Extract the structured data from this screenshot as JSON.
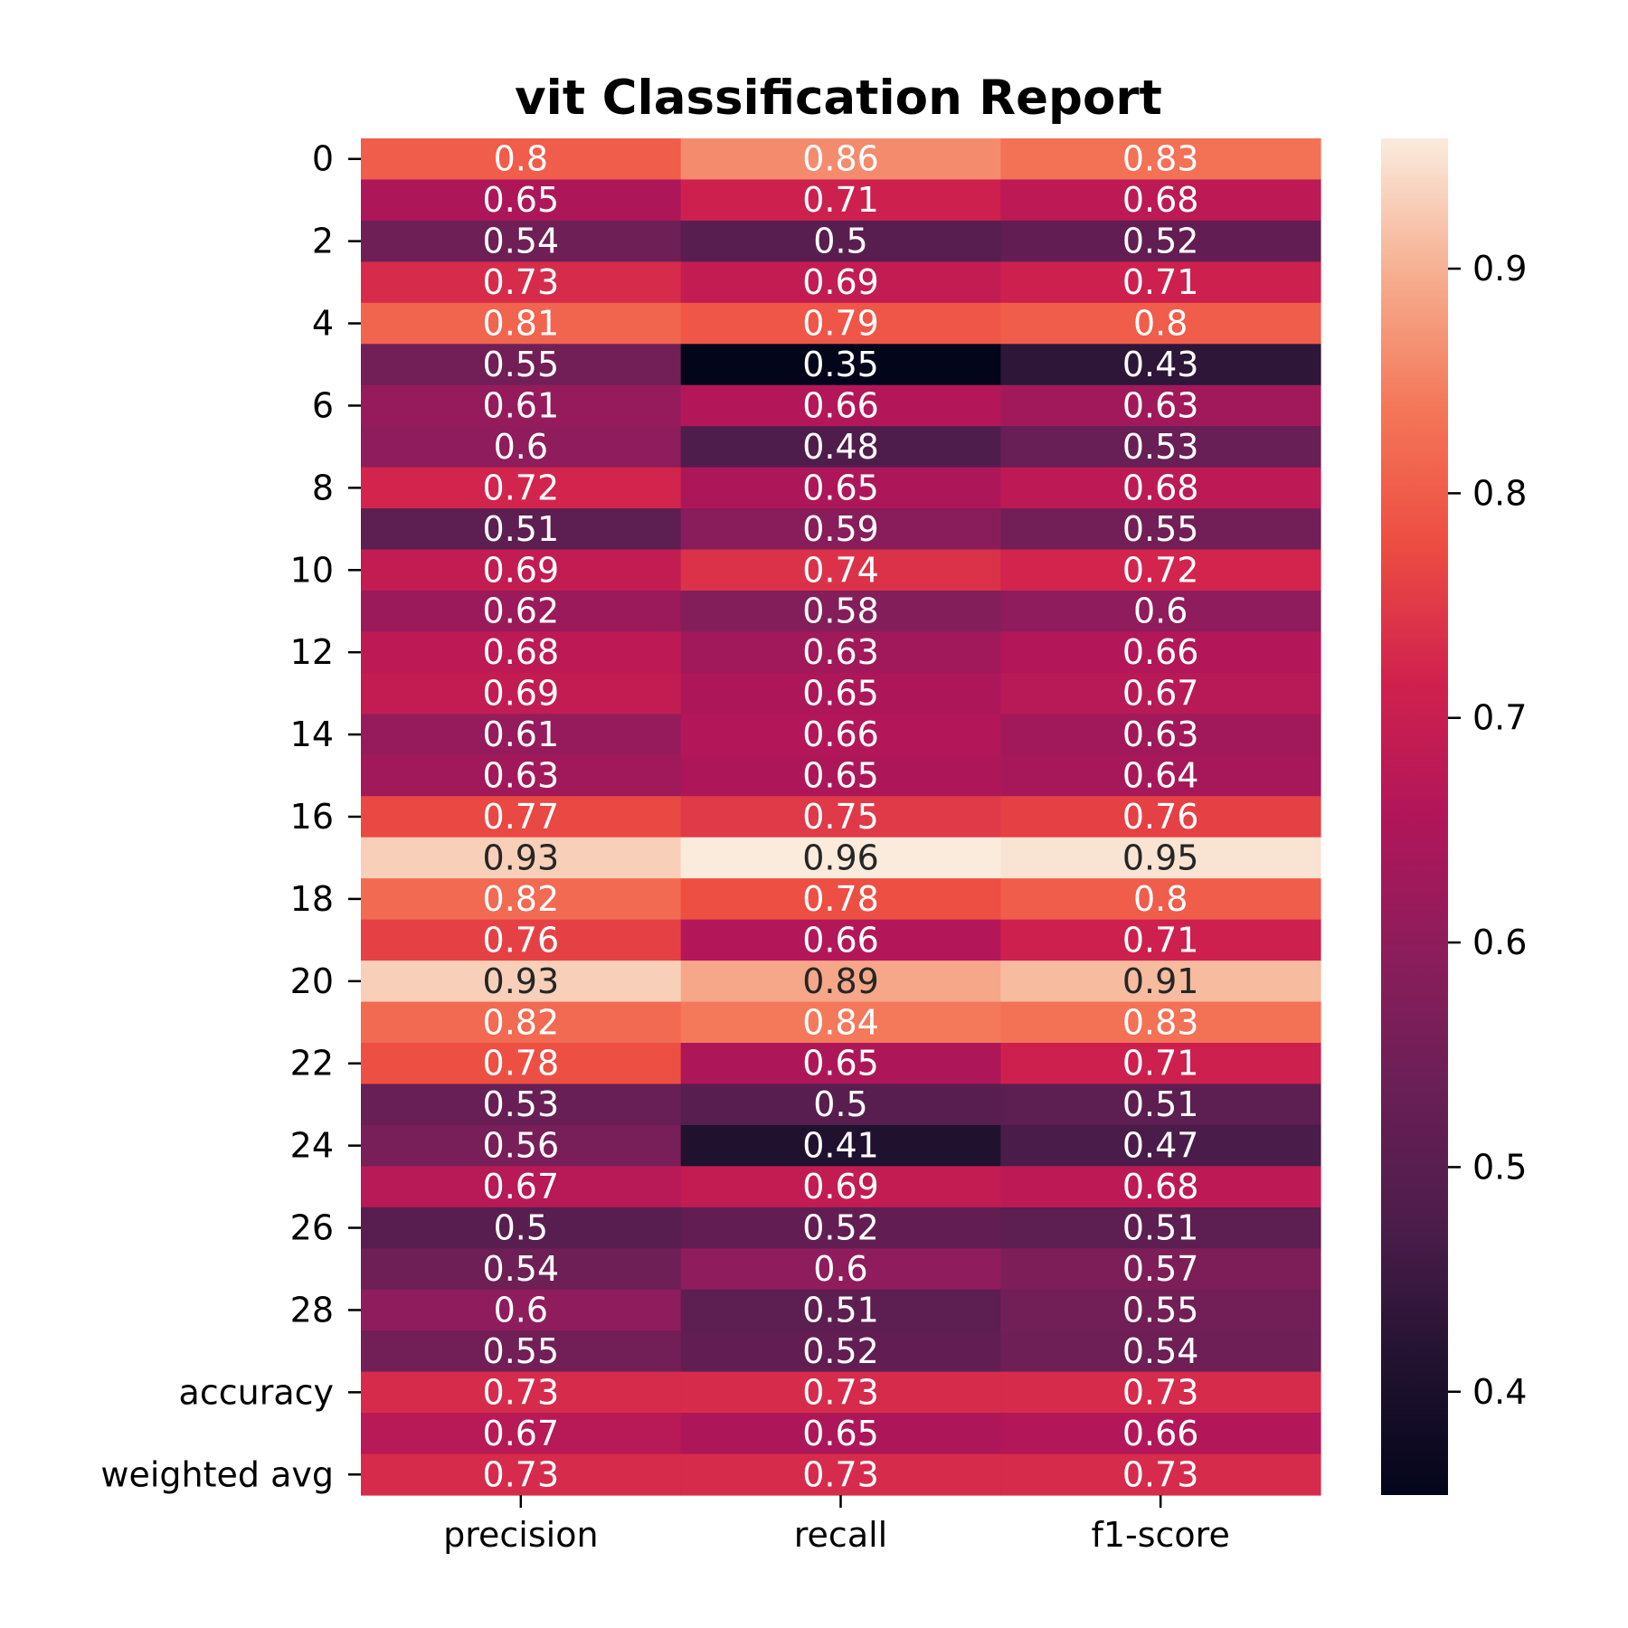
{
  "chart_data": {
    "type": "heatmap",
    "title": "vit Classification Report",
    "xlabel": "",
    "ylabel": "",
    "columns": [
      "precision",
      "recall",
      "f1-score"
    ],
    "row_tick_labels": [
      "0",
      "2",
      "4",
      "6",
      "8",
      "10",
      "12",
      "14",
      "16",
      "18",
      "20",
      "22",
      "24",
      "26",
      "28",
      "accuracy",
      "weighted avg"
    ],
    "row_tick_indices": [
      0,
      2,
      4,
      6,
      8,
      10,
      12,
      14,
      16,
      18,
      20,
      22,
      24,
      26,
      28,
      30,
      32
    ],
    "values": [
      [
        0.8,
        0.86,
        0.83
      ],
      [
        0.65,
        0.71,
        0.68
      ],
      [
        0.54,
        0.5,
        0.52
      ],
      [
        0.73,
        0.69,
        0.71
      ],
      [
        0.81,
        0.79,
        0.8
      ],
      [
        0.55,
        0.35,
        0.43
      ],
      [
        0.61,
        0.66,
        0.63
      ],
      [
        0.6,
        0.48,
        0.53
      ],
      [
        0.72,
        0.65,
        0.68
      ],
      [
        0.51,
        0.59,
        0.55
      ],
      [
        0.69,
        0.74,
        0.72
      ],
      [
        0.62,
        0.58,
        0.6
      ],
      [
        0.68,
        0.63,
        0.66
      ],
      [
        0.69,
        0.65,
        0.67
      ],
      [
        0.61,
        0.66,
        0.63
      ],
      [
        0.63,
        0.65,
        0.64
      ],
      [
        0.77,
        0.75,
        0.76
      ],
      [
        0.93,
        0.96,
        0.95
      ],
      [
        0.82,
        0.78,
        0.8
      ],
      [
        0.76,
        0.66,
        0.71
      ],
      [
        0.93,
        0.89,
        0.91
      ],
      [
        0.82,
        0.84,
        0.83
      ],
      [
        0.78,
        0.65,
        0.71
      ],
      [
        0.53,
        0.5,
        0.51
      ],
      [
        0.56,
        0.41,
        0.47
      ],
      [
        0.67,
        0.69,
        0.68
      ],
      [
        0.5,
        0.52,
        0.51
      ],
      [
        0.54,
        0.6,
        0.57
      ],
      [
        0.6,
        0.51,
        0.55
      ],
      [
        0.55,
        0.52,
        0.54
      ],
      [
        0.73,
        0.73,
        0.73
      ],
      [
        0.67,
        0.65,
        0.66
      ],
      [
        0.73,
        0.73,
        0.73
      ]
    ],
    "colorbar": {
      "range": [
        0.354,
        0.958
      ],
      "ticks": [
        0.4,
        0.5,
        0.6,
        0.7,
        0.8,
        0.9
      ],
      "tick_labels": [
        "0.4",
        "0.5",
        "0.6",
        "0.7",
        "0.8",
        "0.9"
      ]
    },
    "colormap": "rocket",
    "colormap_stops": [
      [
        0.0,
        "#03051a"
      ],
      [
        0.1,
        "#221331"
      ],
      [
        0.2,
        "#4c1d4b"
      ],
      [
        0.3,
        "#6a1f56"
      ],
      [
        0.4,
        "#8c1d5c"
      ],
      [
        0.5,
        "#b1165a"
      ],
      [
        0.6,
        "#d0214e"
      ],
      [
        0.7,
        "#ed4d42"
      ],
      [
        0.8,
        "#f47658"
      ],
      [
        0.9,
        "#f6ae90"
      ],
      [
        1.0,
        "#faebdd"
      ]
    ],
    "grid": false,
    "annotations": true
  }
}
